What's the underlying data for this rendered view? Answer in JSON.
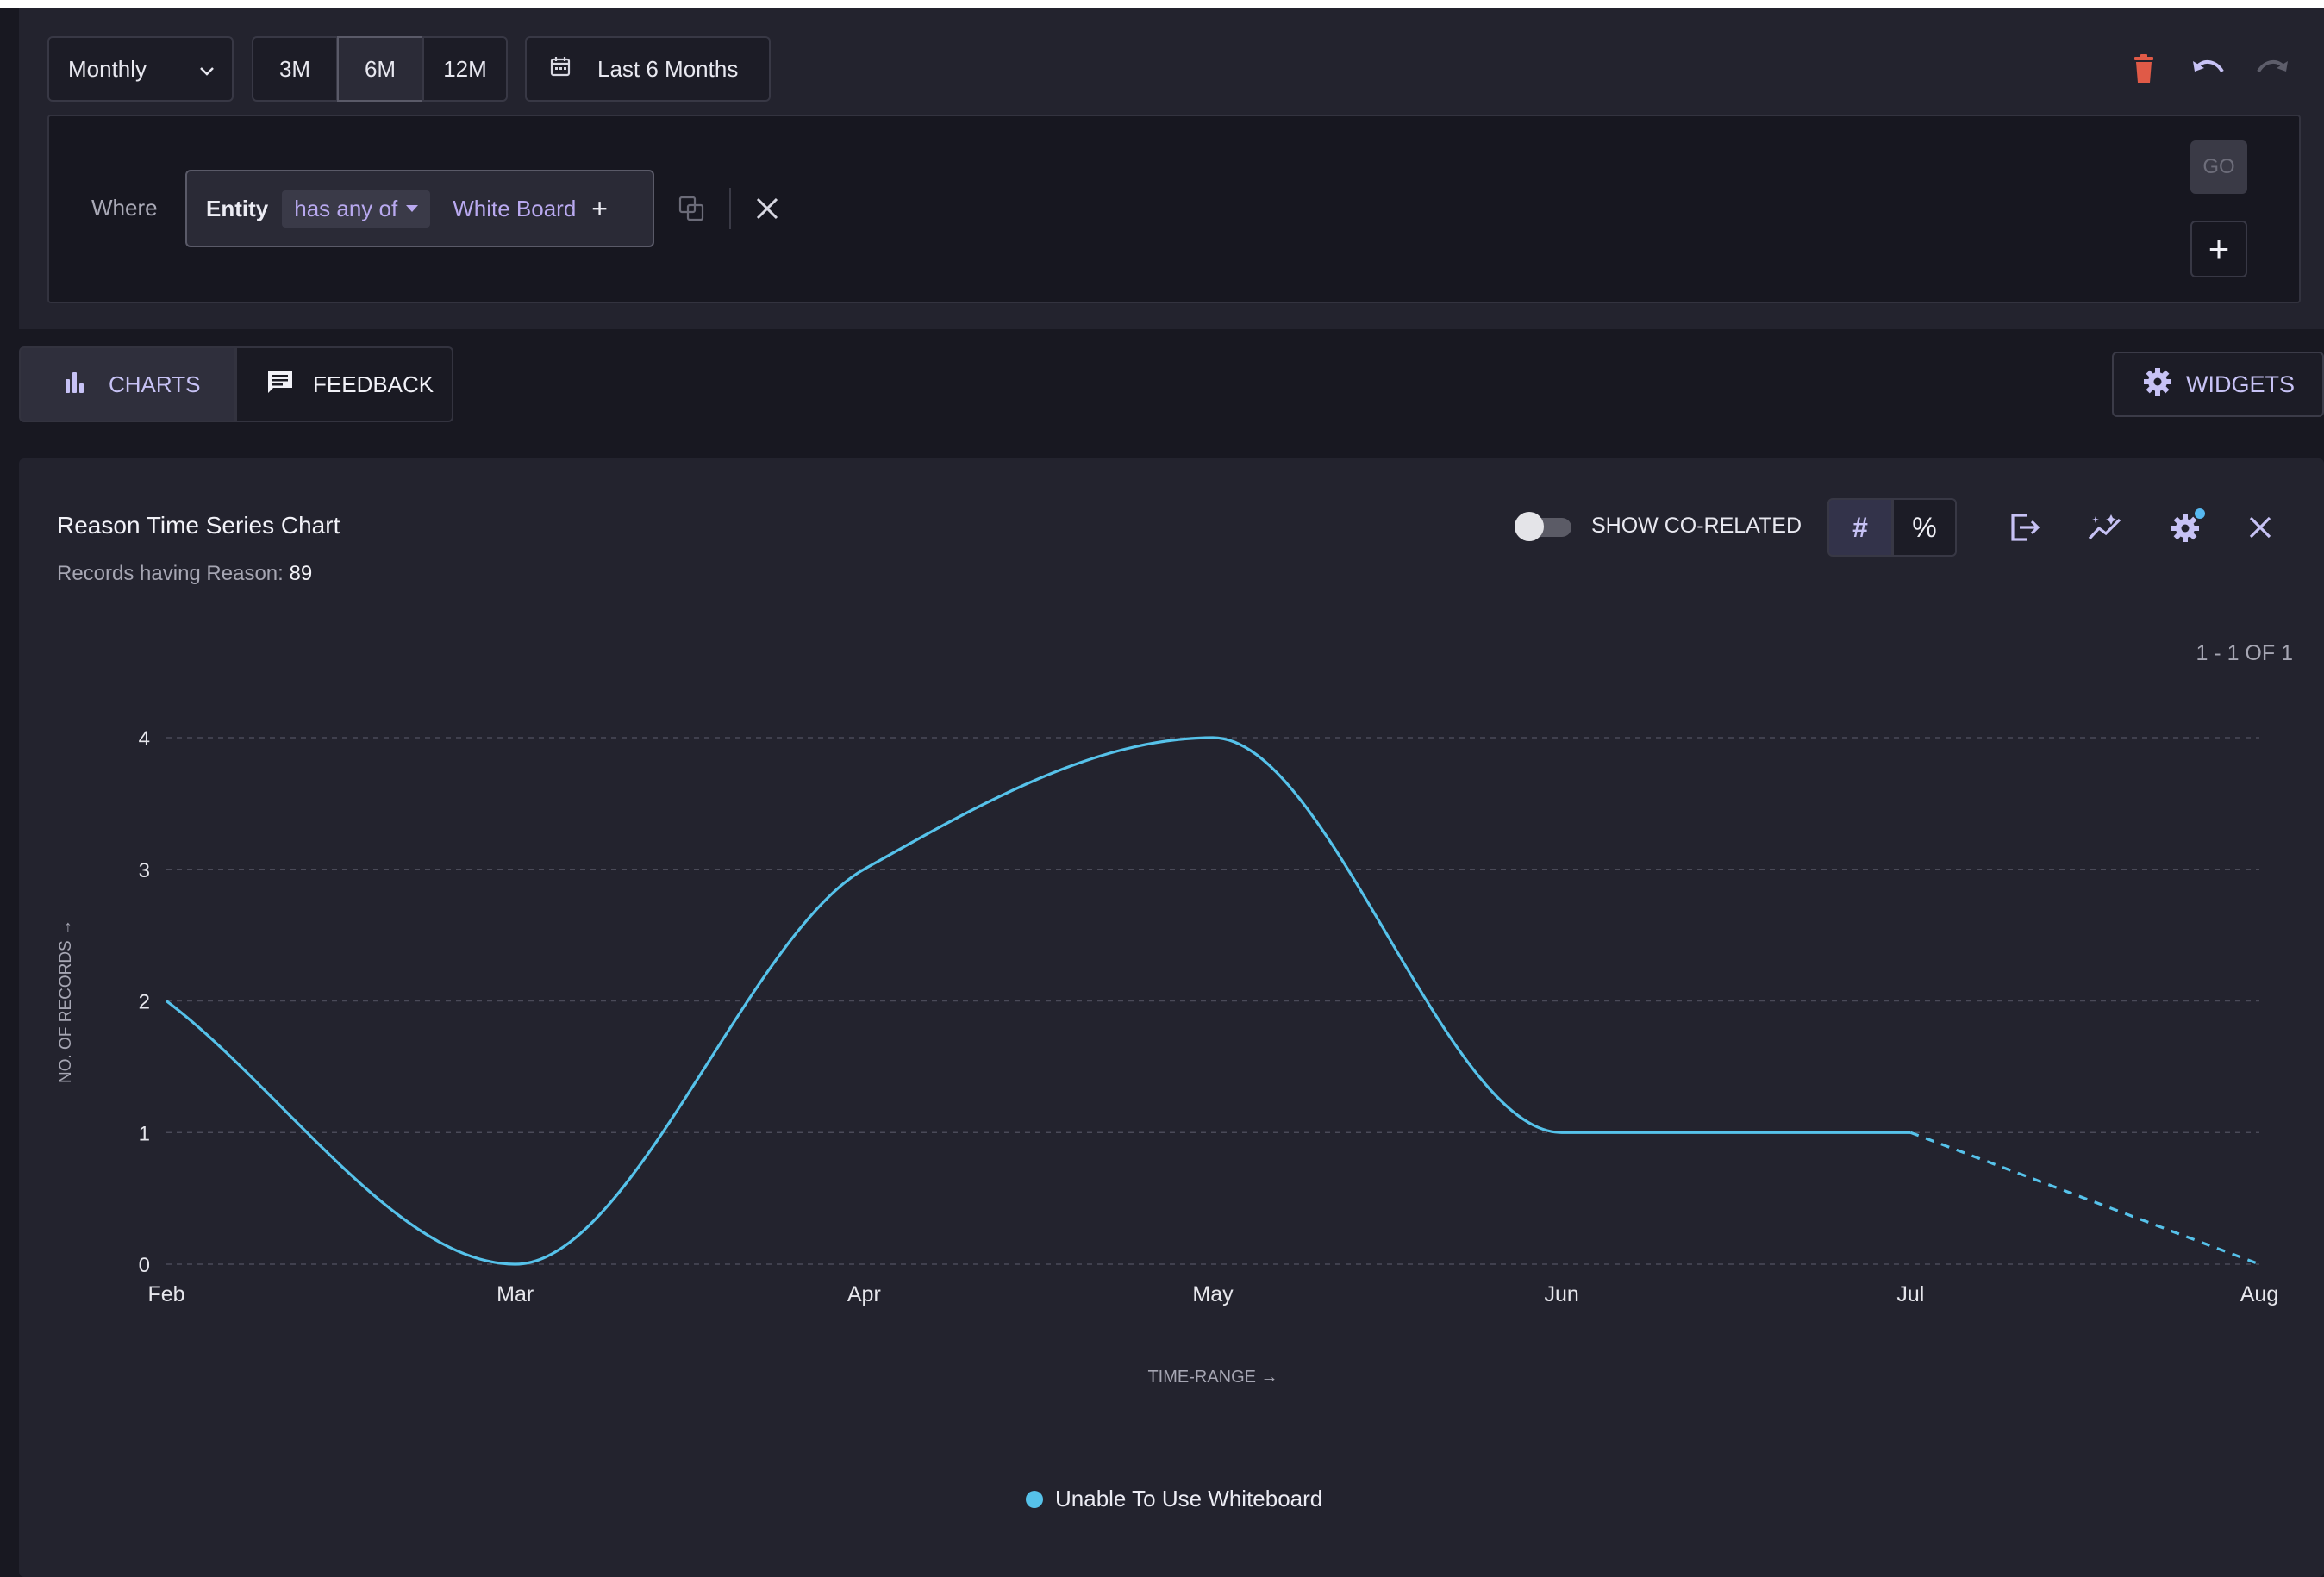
{
  "toolbar": {
    "granularity": "Monthly",
    "ranges": [
      "3M",
      "6M",
      "12M"
    ],
    "selected_range": "6M",
    "date_range_label": "Last 6 Months"
  },
  "filter": {
    "where_label": "Where",
    "field": "Entity",
    "operator": "has any of",
    "value": "White Board",
    "add": "+",
    "go_label": "GO",
    "add_filter": "+"
  },
  "tabs": [
    {
      "label": "CHARTS",
      "icon": "bar-chart-icon",
      "active": true
    },
    {
      "label": "FEEDBACK",
      "icon": "feedback-icon",
      "active": false
    }
  ],
  "widgets_label": "WIDGETS",
  "chart_card": {
    "title": "Reason Time Series Chart",
    "subtitle_prefix": "Records having Reason: ",
    "subtitle_value": "89",
    "show_corelated_label": "SHOW CO-RELATED",
    "count_mode": "#",
    "percent_mode": "%",
    "pager": "1 - 1 OF 1"
  },
  "colors": {
    "series": "#56c2ea",
    "accent": "#c7c2f5",
    "danger": "#e05a47",
    "background": "#181821",
    "panel": "#23232e"
  },
  "chart_data": {
    "type": "line",
    "x": [
      "Feb",
      "Mar",
      "Apr",
      "May",
      "Jun",
      "Jul",
      "Aug"
    ],
    "series": [
      {
        "name": "Unable To Use Whiteboard",
        "values": [
          2,
          0,
          3,
          4,
          1,
          1,
          0
        ],
        "dashed_from_index": 5
      }
    ],
    "xlabel": "TIME-RANGE →",
    "ylabel": "NO. OF RECORDS →",
    "ylim": [
      0,
      4
    ],
    "yticks": [
      0,
      1,
      2,
      3,
      4
    ],
    "grid": true,
    "legend": "bottom-center"
  }
}
